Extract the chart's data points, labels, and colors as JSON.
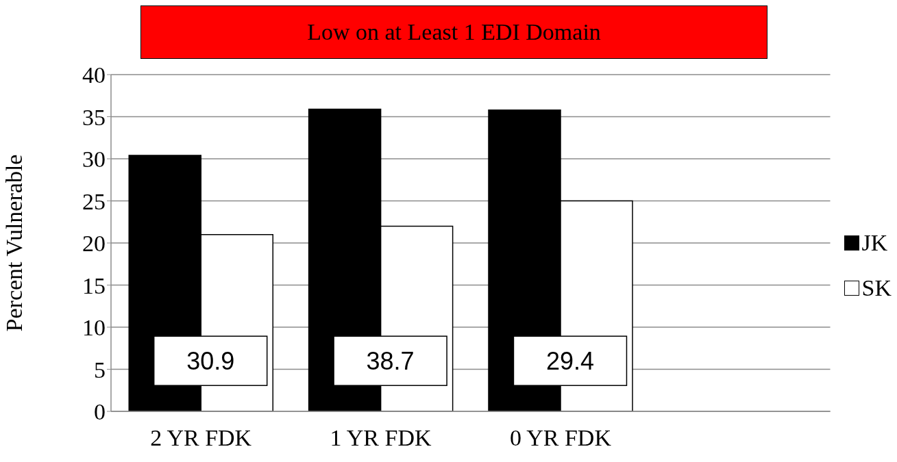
{
  "chart_data": {
    "type": "bar",
    "title": "Low on at Least 1 EDI Domain",
    "categories": [
      "2 YR FDK",
      "1 YR FDK",
      "0 YR FDK",
      null
    ],
    "series": [
      {
        "name": "JK",
        "color": "#000000",
        "values": [
          30.4,
          35.9,
          35.8,
          null
        ]
      },
      {
        "name": "SK",
        "color": "#ffffff",
        "values": [
          21,
          22,
          25,
          null
        ]
      }
    ],
    "ylabel": "Percent Vulnerable",
    "ylim": [
      0,
      40
    ],
    "yticks": [
      0,
      5,
      10,
      15,
      20,
      25,
      30,
      35,
      40
    ],
    "grid": "y",
    "legend": "right",
    "annotations": [
      {
        "text": "30.9",
        "x": "2 YR FDK",
        "y": 6
      },
      {
        "text": "38.7",
        "x": "1 YR FDK",
        "y": 6
      },
      {
        "text": "29.4",
        "x": "0 YR FDK",
        "y": 6
      }
    ]
  }
}
